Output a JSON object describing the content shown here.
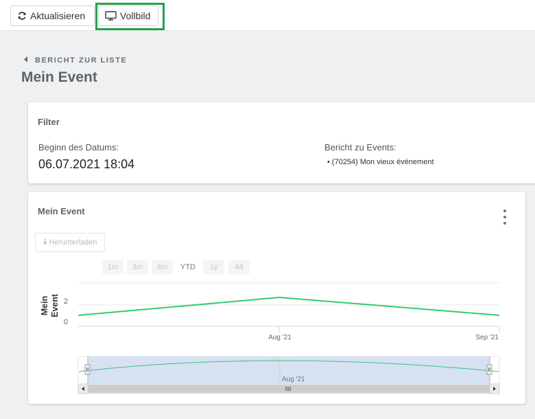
{
  "toolbar": {
    "refresh_label": "Aktualisieren",
    "fullscreen_label": "Vollbild"
  },
  "nav": {
    "back_label": "BERICHT ZUR LISTE"
  },
  "page": {
    "title": "Mein Event"
  },
  "filter": {
    "title": "Filter",
    "start_label": "Beginn des Datums:",
    "start_value": "06.07.2021 18:04",
    "events_label": "Bericht zu Events:",
    "events_items": [
      "(70254) Mon vieux événement"
    ]
  },
  "chart_card": {
    "title": "Mein Event",
    "download_label": "Herunterladen",
    "range_buttons": [
      "1m",
      "3m",
      "6m",
      "YTD",
      "1y",
      "All"
    ],
    "active_range": "YTD"
  },
  "chart_data": {
    "type": "line",
    "y_axis_title_lines": [
      "Mein",
      "Event"
    ],
    "y_ticks": [
      "2",
      "0"
    ],
    "x_ticks": [
      "Aug '21",
      "Sep '21"
    ],
    "navigator_tick": "Aug '21",
    "series": [
      {
        "x": [
          "2021-07-06",
          "2021-08-01",
          "2021-09-01"
        ],
        "values": [
          1,
          2,
          1
        ]
      }
    ],
    "ylim": [
      0,
      3
    ],
    "colors": {
      "line": "#2ecc71",
      "navigator_fill": "#cfdcee",
      "navigator_line": "#3dbf87"
    }
  }
}
